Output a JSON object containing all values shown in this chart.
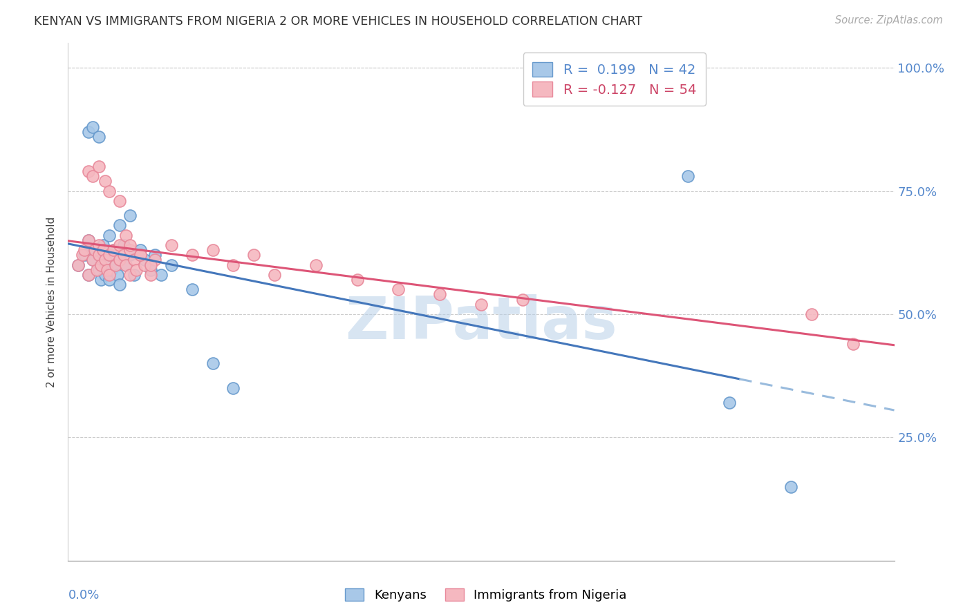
{
  "title": "KENYAN VS IMMIGRANTS FROM NIGERIA 2 OR MORE VEHICLES IN HOUSEHOLD CORRELATION CHART",
  "source": "Source: ZipAtlas.com",
  "ylabel": "2 or more Vehicles in Household",
  "xlim": [
    0.0,
    0.4
  ],
  "ylim": [
    0.0,
    1.05
  ],
  "yticks": [
    0.25,
    0.5,
    0.75,
    1.0
  ],
  "ytick_labels": [
    "25.0%",
    "50.0%",
    "75.0%",
    "100.0%"
  ],
  "legend1_label": "Kenyans",
  "legend2_label": "Immigrants from Nigeria",
  "R1": 0.199,
  "N1": 42,
  "R2": -0.127,
  "N2": 54,
  "blue_scatter_color": "#a8c8e8",
  "blue_edge_color": "#6699cc",
  "pink_scatter_color": "#f5b8c0",
  "pink_edge_color": "#e8889a",
  "blue_line_color": "#4477bb",
  "blue_dash_color": "#99bbdd",
  "pink_line_color": "#dd5577",
  "watermark": "ZIPatlas",
  "watermark_color": "#b8d0e8",
  "kenyans_x": [
    0.005,
    0.008,
    0.01,
    0.01,
    0.012,
    0.013,
    0.015,
    0.015,
    0.016,
    0.017,
    0.018,
    0.018,
    0.02,
    0.02,
    0.021,
    0.022,
    0.023,
    0.024,
    0.025,
    0.025,
    0.027,
    0.028,
    0.03,
    0.032,
    0.035,
    0.037,
    0.04,
    0.042,
    0.045,
    0.05,
    0.01,
    0.012,
    0.015,
    0.02,
    0.025,
    0.03,
    0.06,
    0.07,
    0.08,
    0.3,
    0.32,
    0.35
  ],
  "kenyans_y": [
    0.6,
    0.62,
    0.58,
    0.65,
    0.61,
    0.63,
    0.59,
    0.62,
    0.57,
    0.64,
    0.6,
    0.58,
    0.62,
    0.57,
    0.59,
    0.63,
    0.6,
    0.58,
    0.61,
    0.56,
    0.64,
    0.6,
    0.62,
    0.58,
    0.63,
    0.61,
    0.59,
    0.62,
    0.58,
    0.6,
    0.87,
    0.88,
    0.86,
    0.66,
    0.68,
    0.7,
    0.55,
    0.4,
    0.35,
    0.78,
    0.32,
    0.15
  ],
  "nigeria_x": [
    0.005,
    0.007,
    0.008,
    0.01,
    0.01,
    0.012,
    0.013,
    0.014,
    0.015,
    0.015,
    0.016,
    0.017,
    0.018,
    0.019,
    0.02,
    0.02,
    0.022,
    0.023,
    0.025,
    0.025,
    0.027,
    0.028,
    0.03,
    0.03,
    0.032,
    0.033,
    0.035,
    0.037,
    0.04,
    0.042,
    0.01,
    0.012,
    0.015,
    0.018,
    0.02,
    0.025,
    0.028,
    0.03,
    0.035,
    0.04,
    0.05,
    0.06,
    0.07,
    0.08,
    0.09,
    0.1,
    0.12,
    0.14,
    0.16,
    0.18,
    0.2,
    0.22,
    0.36,
    0.38
  ],
  "nigeria_y": [
    0.6,
    0.62,
    0.63,
    0.58,
    0.65,
    0.61,
    0.63,
    0.59,
    0.64,
    0.62,
    0.6,
    0.63,
    0.61,
    0.59,
    0.62,
    0.58,
    0.63,
    0.6,
    0.61,
    0.64,
    0.62,
    0.6,
    0.63,
    0.58,
    0.61,
    0.59,
    0.62,
    0.6,
    0.58,
    0.61,
    0.79,
    0.78,
    0.8,
    0.77,
    0.75,
    0.73,
    0.66,
    0.64,
    0.62,
    0.6,
    0.64,
    0.62,
    0.63,
    0.6,
    0.62,
    0.58,
    0.6,
    0.57,
    0.55,
    0.54,
    0.52,
    0.53,
    0.5,
    0.44
  ]
}
